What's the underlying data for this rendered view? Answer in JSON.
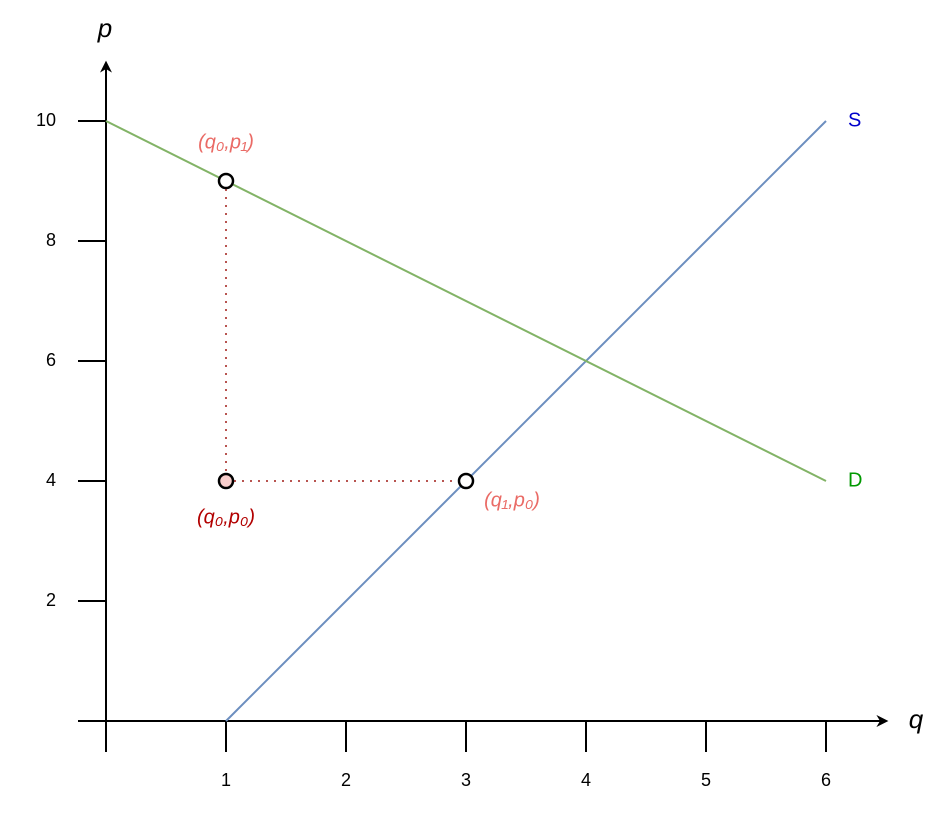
{
  "chart_data": {
    "type": "line",
    "x_label": "q",
    "y_label": "p",
    "xlim": [
      0,
      6.5
    ],
    "ylim": [
      0,
      11
    ],
    "xticks": [
      1,
      2,
      3,
      4,
      5,
      6
    ],
    "yticks": [
      2,
      4,
      6,
      8,
      10
    ],
    "series": [
      {
        "name": "S",
        "color": "#6c8ebf",
        "label_color": "#0000cc",
        "x": [
          1,
          6
        ],
        "values": [
          0,
          10
        ]
      },
      {
        "name": "D",
        "color": "#82b366",
        "label_color": "#009900",
        "x": [
          0,
          6
        ],
        "values": [
          10,
          4
        ]
      }
    ],
    "points": [
      {
        "label": "(q₀,p₁)",
        "x": 1,
        "y": 9,
        "fill": "#ffffff",
        "label_color": "#ea6b66",
        "label_position": "above"
      },
      {
        "label": "(q₀,p₀)",
        "x": 1,
        "y": 4,
        "fill": "#f8cecc",
        "label_color": "#b20000",
        "label_position": "below"
      },
      {
        "label": "(q₁,p₀)",
        "x": 3,
        "y": 4,
        "fill": "#ffffff",
        "label_color": "#ea6b66",
        "label_position": "below-right"
      }
    ],
    "guide_color": "#b85450"
  }
}
